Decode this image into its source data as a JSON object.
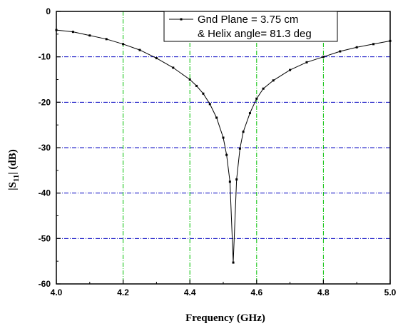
{
  "chart_data": {
    "type": "line",
    "title": "",
    "xlabel": "Frequency (GHz)",
    "ylabel": "|S11| (dB)",
    "ylabel_parts": {
      "pre": "|S",
      "sub": "11",
      "post": "| (dB)"
    },
    "xlim": [
      4.0,
      5.0
    ],
    "ylim": [
      -60,
      0
    ],
    "xticks": [
      4.0,
      4.2,
      4.4,
      4.6,
      4.8,
      5.0
    ],
    "xtick_labels": [
      "4.0",
      "4.2",
      "4.4",
      "4.6",
      "4.8",
      "5.0"
    ],
    "yticks": [
      0,
      -10,
      -20,
      -30,
      -40,
      -50,
      -60
    ],
    "ytick_labels": [
      "0",
      "-10",
      "-20",
      "-30",
      "-40",
      "-50",
      "-60"
    ],
    "grid": {
      "x": true,
      "y": true,
      "x_color": "#00c000",
      "y_color": "#0000c0"
    },
    "legend": {
      "position": "top",
      "line1": "Gnd Plane = 3.75 cm",
      "line2": "& Helix angle= 81.3 deg"
    },
    "series": [
      {
        "name": "Gnd Plane = 3.75 cm",
        "color": "#000000",
        "marker": "square",
        "points": [
          [
            4.0,
            -4.1
          ],
          [
            4.05,
            -4.5
          ],
          [
            4.1,
            -5.3
          ],
          [
            4.15,
            -6.1
          ],
          [
            4.2,
            -7.2
          ],
          [
            4.25,
            -8.5
          ],
          [
            4.3,
            -10.3
          ],
          [
            4.35,
            -12.4
          ],
          [
            4.4,
            -15.0
          ],
          [
            4.42,
            -16.4
          ],
          [
            4.44,
            -18.1
          ],
          [
            4.46,
            -20.4
          ],
          [
            4.48,
            -23.4
          ],
          [
            4.5,
            -27.8
          ],
          [
            4.51,
            -31.6
          ],
          [
            4.52,
            -37.5
          ],
          [
            4.53,
            -55.3
          ],
          [
            4.54,
            -37.0
          ],
          [
            4.55,
            -30.2
          ],
          [
            4.56,
            -26.5
          ],
          [
            4.58,
            -22.4
          ],
          [
            4.6,
            -19.2
          ],
          [
            4.62,
            -17.0
          ],
          [
            4.65,
            -15.2
          ],
          [
            4.7,
            -12.9
          ],
          [
            4.75,
            -11.2
          ],
          [
            4.8,
            -10.0
          ],
          [
            4.85,
            -8.8
          ],
          [
            4.9,
            -7.9
          ],
          [
            4.95,
            -7.2
          ],
          [
            5.0,
            -6.5
          ]
        ]
      }
    ]
  }
}
